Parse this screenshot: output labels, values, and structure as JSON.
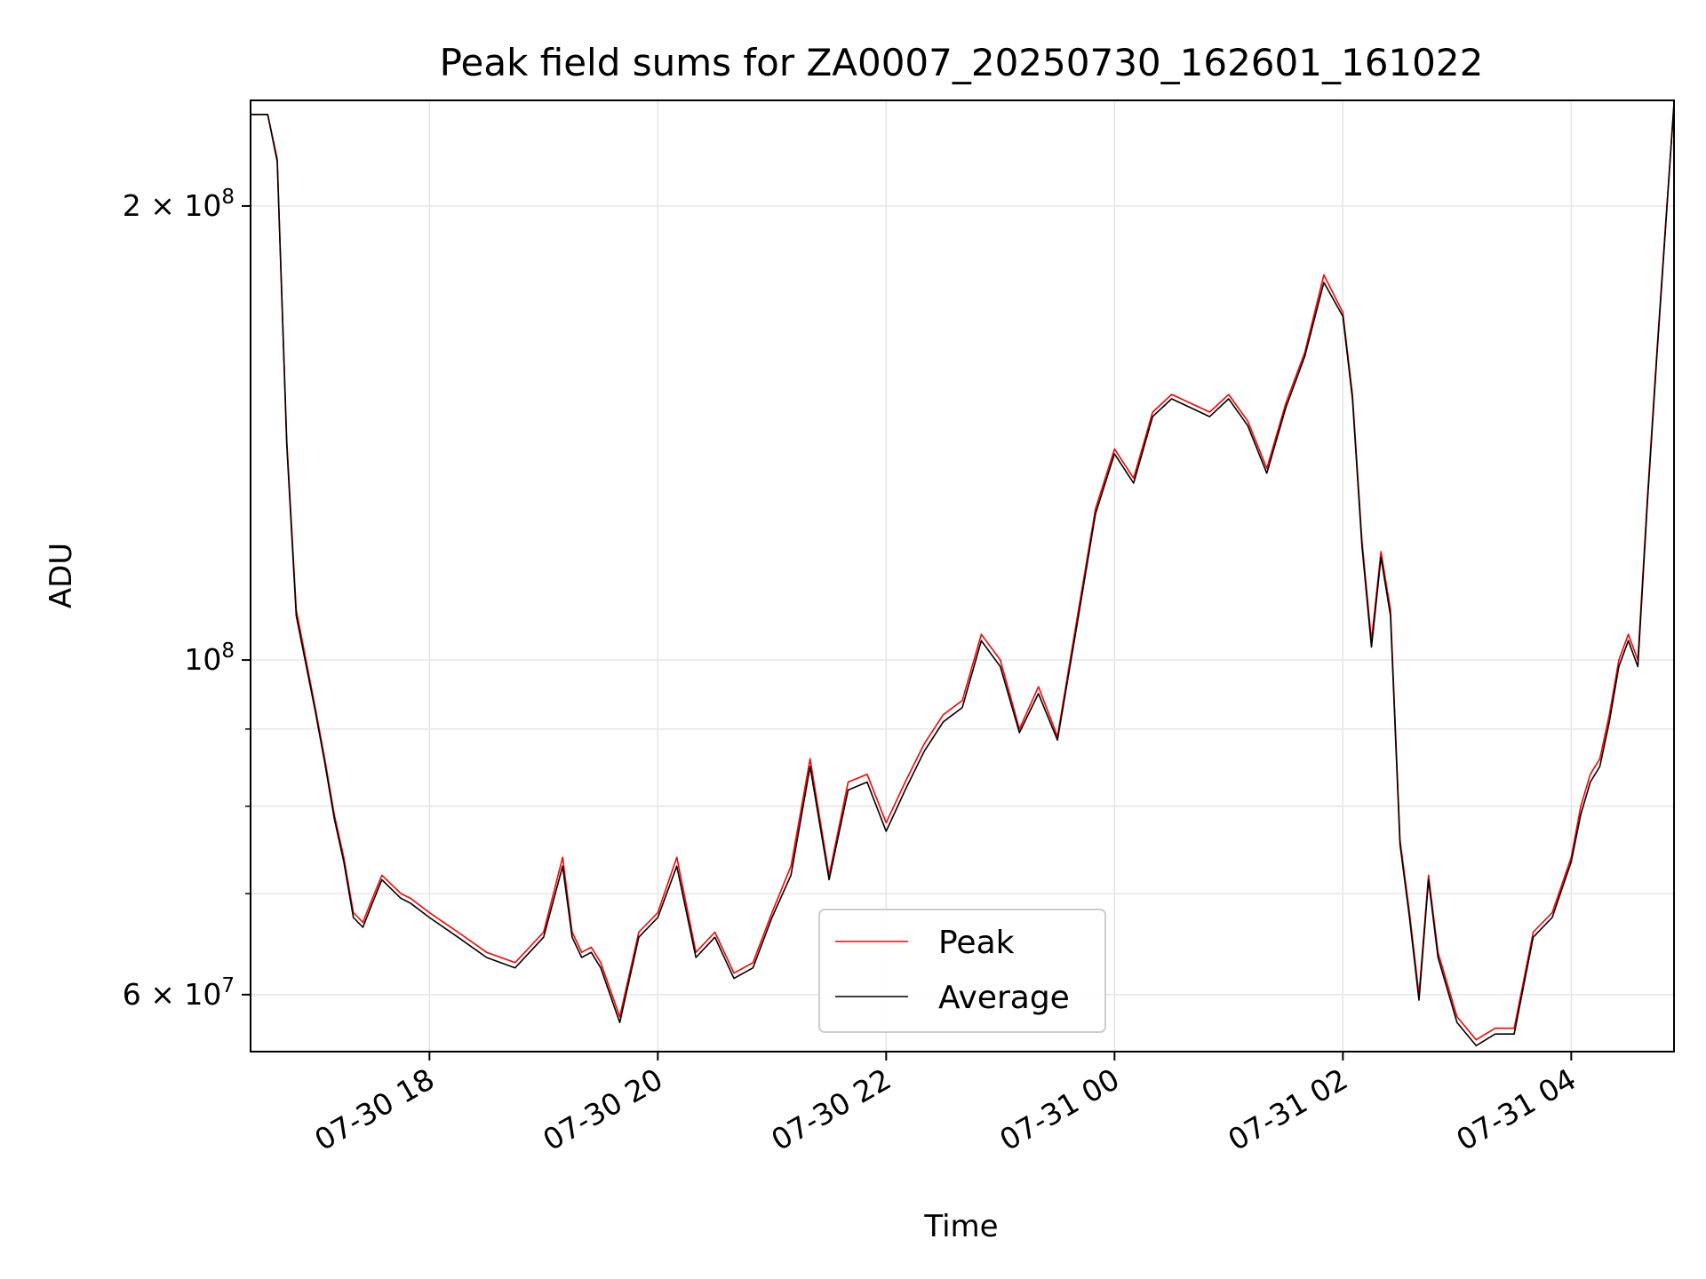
{
  "chart_data": {
    "type": "line",
    "title": "Peak field sums for ZA0007_20250730_162601_161022",
    "xlabel": "Time",
    "ylabel": "ADU",
    "yscale": "log",
    "xlim": [
      "2025-07-30 16:26",
      "2025-07-31 04:54"
    ],
    "ylim": [
      55000000,
      235000000
    ],
    "grid": true,
    "legend_position": "lower center",
    "x_ticks": [
      "07-30 18",
      "07-30 20",
      "07-30 22",
      "07-31 00",
      "07-31 02",
      "07-31 04"
    ],
    "y_ticks": [
      {
        "value": 200000000,
        "mantissa": "2",
        "exp": "8"
      },
      {
        "value": 100000000,
        "mantissa": "",
        "exp": "8"
      },
      {
        "value": 60000000,
        "mantissa": "6",
        "exp": "7"
      }
    ],
    "y_minor_gridlines": [
      70000000,
      80000000,
      90000000
    ],
    "series": [
      {
        "name": "Peak",
        "color": "#ff0000"
      },
      {
        "name": "Average",
        "color": "#000000"
      }
    ],
    "x": [
      "2025-07-30 16:26",
      "2025-07-30 16:35",
      "2025-07-30 16:40",
      "2025-07-30 16:45",
      "2025-07-30 16:50",
      "2025-07-30 17:00",
      "2025-07-30 17:05",
      "2025-07-30 17:10",
      "2025-07-30 17:15",
      "2025-07-30 17:20",
      "2025-07-30 17:25",
      "2025-07-30 17:30",
      "2025-07-30 17:35",
      "2025-07-30 17:40",
      "2025-07-30 17:45",
      "2025-07-30 17:50",
      "2025-07-30 18:00",
      "2025-07-30 18:15",
      "2025-07-30 18:30",
      "2025-07-30 18:45",
      "2025-07-30 19:00",
      "2025-07-30 19:10",
      "2025-07-30 19:15",
      "2025-07-30 19:20",
      "2025-07-30 19:25",
      "2025-07-30 19:30",
      "2025-07-30 19:40",
      "2025-07-30 19:50",
      "2025-07-30 20:00",
      "2025-07-30 20:10",
      "2025-07-30 20:20",
      "2025-07-30 20:30",
      "2025-07-30 20:40",
      "2025-07-30 20:50",
      "2025-07-30 21:00",
      "2025-07-30 21:10",
      "2025-07-30 21:20",
      "2025-07-30 21:30",
      "2025-07-30 21:40",
      "2025-07-30 21:50",
      "2025-07-30 22:00",
      "2025-07-30 22:10",
      "2025-07-30 22:20",
      "2025-07-30 22:30",
      "2025-07-30 22:40",
      "2025-07-30 22:50",
      "2025-07-30 23:00",
      "2025-07-30 23:10",
      "2025-07-30 23:20",
      "2025-07-30 23:30",
      "2025-07-30 23:40",
      "2025-07-30 23:50",
      "2025-07-31 00:00",
      "2025-07-31 00:10",
      "2025-07-31 00:20",
      "2025-07-31 00:30",
      "2025-07-31 00:40",
      "2025-07-31 00:50",
      "2025-07-31 01:00",
      "2025-07-31 01:10",
      "2025-07-31 01:20",
      "2025-07-31 01:30",
      "2025-07-31 01:40",
      "2025-07-31 01:50",
      "2025-07-31 02:00",
      "2025-07-31 02:05",
      "2025-07-31 02:10",
      "2025-07-31 02:15",
      "2025-07-31 02:20",
      "2025-07-31 02:25",
      "2025-07-31 02:30",
      "2025-07-31 02:35",
      "2025-07-31 02:40",
      "2025-07-31 02:45",
      "2025-07-31 02:50",
      "2025-07-31 03:00",
      "2025-07-31 03:10",
      "2025-07-31 03:20",
      "2025-07-31 03:30",
      "2025-07-31 03:40",
      "2025-07-31 03:50",
      "2025-07-31 04:00",
      "2025-07-31 04:05",
      "2025-07-31 04:10",
      "2025-07-31 04:15",
      "2025-07-31 04:20",
      "2025-07-31 04:25",
      "2025-07-31 04:30",
      "2025-07-31 04:35",
      "2025-07-31 04:40",
      "2025-07-31 04:45",
      "2025-07-31 04:50",
      "2025-07-31 04:54"
    ],
    "peak": [
      230000000,
      230000000,
      215000000,
      140000000,
      108000000,
      93000000,
      86000000,
      79000000,
      74000000,
      68000000,
      67000000,
      69500000,
      72000000,
      71000000,
      70000000,
      69500000,
      68000000,
      66000000,
      64000000,
      63000000,
      66000000,
      74000000,
      66000000,
      64000000,
      64500000,
      63000000,
      58000000,
      66000000,
      68000000,
      74000000,
      64000000,
      66000000,
      62000000,
      63000000,
      68000000,
      73000000,
      86000000,
      72000000,
      83000000,
      84000000,
      78000000,
      83000000,
      88000000,
      92000000,
      94000000,
      104000000,
      100000000,
      90000000,
      96000000,
      89000000,
      106000000,
      126000000,
      138000000,
      132000000,
      146000000,
      150000000,
      148000000,
      146000000,
      150000000,
      144000000,
      134000000,
      148000000,
      160000000,
      180000000,
      170000000,
      150000000,
      120000000,
      103000000,
      118000000,
      108000000,
      76000000,
      68000000,
      60000000,
      72000000,
      64000000,
      58000000,
      56000000,
      57000000,
      57000000,
      66000000,
      68000000,
      74000000,
      80000000,
      84000000,
      86000000,
      92000000,
      100000000,
      104000000,
      100000000,
      128000000,
      160000000,
      198000000,
      234000000
    ],
    "average": [
      230000000,
      230000000,
      214000000,
      139000000,
      107000000,
      92500000,
      85500000,
      78500000,
      73500000,
      67500000,
      66500000,
      69000000,
      71500000,
      70500000,
      69500000,
      69000000,
      67500000,
      65500000,
      63500000,
      62500000,
      65500000,
      73000000,
      65500000,
      63500000,
      64000000,
      62500000,
      57500000,
      65500000,
      67500000,
      73000000,
      63500000,
      65500000,
      61500000,
      62500000,
      67500000,
      72000000,
      85000000,
      71500000,
      82000000,
      83000000,
      77000000,
      82000000,
      87000000,
      91000000,
      93000000,
      103000000,
      99000000,
      89500000,
      95000000,
      88500000,
      105000000,
      125000000,
      137000000,
      131000000,
      145000000,
      149000000,
      147000000,
      145000000,
      149000000,
      143000000,
      133000000,
      147000000,
      159000000,
      178000000,
      169000000,
      149000000,
      119000000,
      102000000,
      117000000,
      107000000,
      75500000,
      67500000,
      59500000,
      71500000,
      63500000,
      57500000,
      55500000,
      56500000,
      56500000,
      65500000,
      67500000,
      73500000,
      79000000,
      83000000,
      85000000,
      91000000,
      99000000,
      103000000,
      99000000,
      127000000,
      159000000,
      197000000,
      234000000
    ]
  }
}
